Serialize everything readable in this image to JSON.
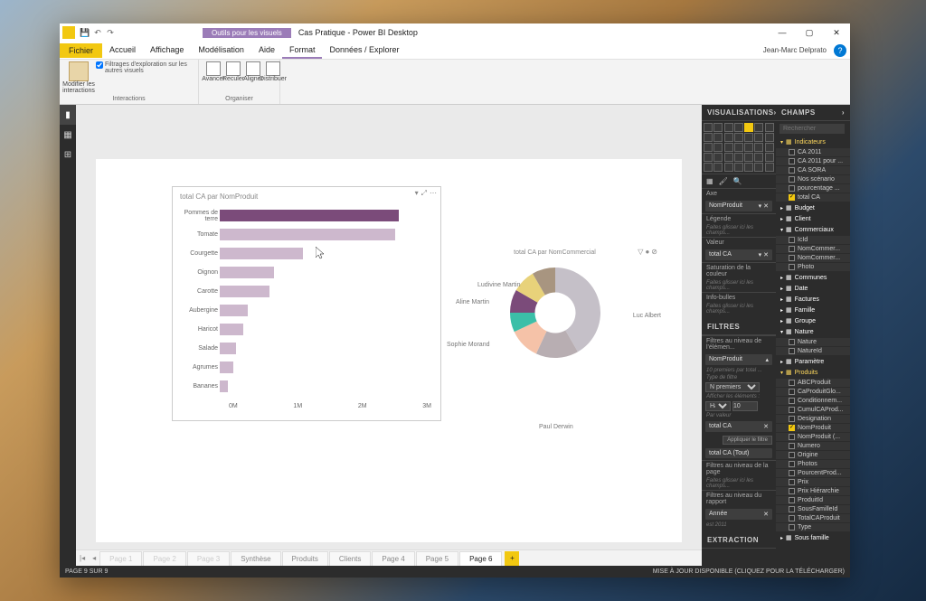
{
  "titlebar": {
    "visual_tools": "Outils pour les visuels",
    "title": "Cas Pratique - Power BI Desktop",
    "user": "Jean-Marc Delprato"
  },
  "menu": {
    "fichier": "Fichier",
    "items": [
      "Accueil",
      "Affichage",
      "Modélisation",
      "Aide",
      "Format",
      "Données / Explorer"
    ]
  },
  "ribbon": {
    "interactions": {
      "modify": "Modifier les interactions",
      "filter_check": "Filtrages d'exploration sur les autres visuels",
      "label": "Interactions"
    },
    "organiser": {
      "btns": [
        "Avancer",
        "Reculer",
        "Aligner",
        "Distribuer"
      ],
      "label": "Organiser"
    }
  },
  "bar_chart": {
    "title": "total CA par NomProduit",
    "categories": [
      "Pommes de terre",
      "Tomate",
      "Courgette",
      "Oignon",
      "Carotte",
      "Aubergine",
      "Haricot",
      "Salade",
      "Agrumes",
      "Bananes"
    ],
    "values": [
      2.7,
      2.65,
      1.25,
      0.82,
      0.75,
      0.42,
      0.35,
      0.25,
      0.2,
      0.12
    ],
    "colors": [
      "#7b4b7a",
      "#cdb8cd",
      "#cdb8cd",
      "#cdb8cd",
      "#cdb8cd",
      "#cdb8cd",
      "#cdb8cd",
      "#cdb8cd",
      "#cdb8cd",
      "#cdb8cd"
    ],
    "xmax": 3,
    "xticks": [
      "0M",
      "1M",
      "2M",
      "3M"
    ]
  },
  "pie_chart": {
    "title": "total CA par NomCommercial",
    "labels": [
      "Luc Albert",
      "Paul Derwin",
      "Sophie Morand",
      "Aline Martin",
      "Ludivine Martin"
    ],
    "slices": [
      {
        "start": 0,
        "end": 150,
        "color": "#c5c0c8"
      },
      {
        "start": 150,
        "end": 205,
        "color": "#b8aeb2"
      },
      {
        "start": 205,
        "end": 245,
        "color": "#f5c2a8"
      },
      {
        "start": 245,
        "end": 270,
        "color": "#3bbfa8"
      },
      {
        "start": 270,
        "end": 300,
        "color": "#7b4b7a"
      },
      {
        "start": 300,
        "end": 330,
        "color": "#e8d27a"
      },
      {
        "start": 330,
        "end": 360,
        "color": "#a89580"
      }
    ],
    "inner_ratio": 0.45
  },
  "tabs": {
    "pages": [
      "Page 1",
      "Page 2",
      "Page 3",
      "Synthèse",
      "Produits",
      "Clients",
      "Page 4",
      "Page 5",
      "Page 6"
    ],
    "active": 8
  },
  "status": {
    "left": "PAGE 9 SUR 9",
    "right": "MISE À JOUR DISPONIBLE (CLIQUEZ POUR LA TÉLÉCHARGER)"
  },
  "vis_pane": {
    "title": "VISUALISATIONS",
    "axe": "Axe",
    "axe_field": "NomProduit",
    "legende": "Légende",
    "legende_hint": "Faites glisser ici les champs...",
    "valeur": "Valeur",
    "valeur_field": "total CA",
    "saturation": "Saturation de la couleur",
    "infobulles": "Info-bulles",
    "infobulles_hint": "Faites glisser ici les champs...",
    "filtres": "FILTRES",
    "filtres_niveau": "Filtres au niveau de l'élémen...",
    "nomproduit_filter": "NomProduit",
    "premiers": "10 premiers par total ...",
    "type_filtre": "Type de filtre",
    "n_premiers": "N premiers",
    "afficher": "Afficher les éléments :",
    "haut": "Haut",
    "haut_val": "10",
    "par_valeur": "Par valeur",
    "par_valeur_field": "total CA",
    "appliquer": "Appliquer le filtre",
    "total_ca_tout": "total CA  (Tout)",
    "filtres_page": "Filtres au niveau de la page",
    "filtres_rapport": "Filtres au niveau du rapport",
    "annee": "Année",
    "annee_val": "est 2011",
    "extraction": "EXTRACTION"
  },
  "fields_pane": {
    "title": "CHAMPS",
    "search": "Rechercher",
    "tables": [
      {
        "name": "Indicateurs",
        "expanded": true,
        "highlight": true,
        "fields": [
          {
            "name": "CA 2011",
            "checked": false
          },
          {
            "name": "CA 2011 pour ...",
            "checked": false
          },
          {
            "name": "CA SORA",
            "checked": false
          },
          {
            "name": "Nos scénario",
            "checked": false
          },
          {
            "name": "pourcentage ...",
            "checked": false
          },
          {
            "name": "total CA",
            "checked": true
          }
        ]
      },
      {
        "name": "Budget",
        "expanded": false
      },
      {
        "name": "Client",
        "expanded": false
      },
      {
        "name": "Commerciaux",
        "expanded": true,
        "fields": [
          {
            "name": "IcId",
            "checked": false
          },
          {
            "name": "NomCommer...",
            "checked": false
          },
          {
            "name": "NomCommer...",
            "checked": false
          },
          {
            "name": "Photo",
            "checked": false
          }
        ]
      },
      {
        "name": "Communes",
        "expanded": false
      },
      {
        "name": "Date",
        "expanded": false
      },
      {
        "name": "Factures",
        "expanded": false
      },
      {
        "name": "Famille",
        "expanded": false
      },
      {
        "name": "Groupe",
        "expanded": false
      },
      {
        "name": "Nature",
        "expanded": true,
        "fields": [
          {
            "name": "Nature",
            "checked": false
          },
          {
            "name": "NatureId",
            "checked": false
          }
        ]
      },
      {
        "name": "Paramètre",
        "expanded": false
      },
      {
        "name": "Produits",
        "expanded": true,
        "highlight": true,
        "fields": [
          {
            "name": "ABCProduit",
            "checked": false
          },
          {
            "name": "CaProduitGlo...",
            "checked": false
          },
          {
            "name": "Conditionnem...",
            "checked": false
          },
          {
            "name": "CumulCAProd...",
            "checked": false
          },
          {
            "name": "Designation",
            "checked": false
          },
          {
            "name": "NomProduit",
            "checked": true
          },
          {
            "name": "NomProduit (...",
            "checked": false
          },
          {
            "name": "Numero",
            "checked": false
          },
          {
            "name": "Origine",
            "checked": false
          },
          {
            "name": "Photos",
            "checked": false
          },
          {
            "name": "PourcentProd...",
            "checked": false
          },
          {
            "name": "Prix",
            "checked": false
          },
          {
            "name": "Prix Hiérarchie",
            "checked": false
          },
          {
            "name": "ProduitId",
            "checked": false
          },
          {
            "name": "SousFamilleId",
            "checked": false
          },
          {
            "name": "TotalCAProduit",
            "checked": false
          },
          {
            "name": "Type",
            "checked": false
          }
        ]
      },
      {
        "name": "Sous famille",
        "expanded": false
      }
    ]
  }
}
